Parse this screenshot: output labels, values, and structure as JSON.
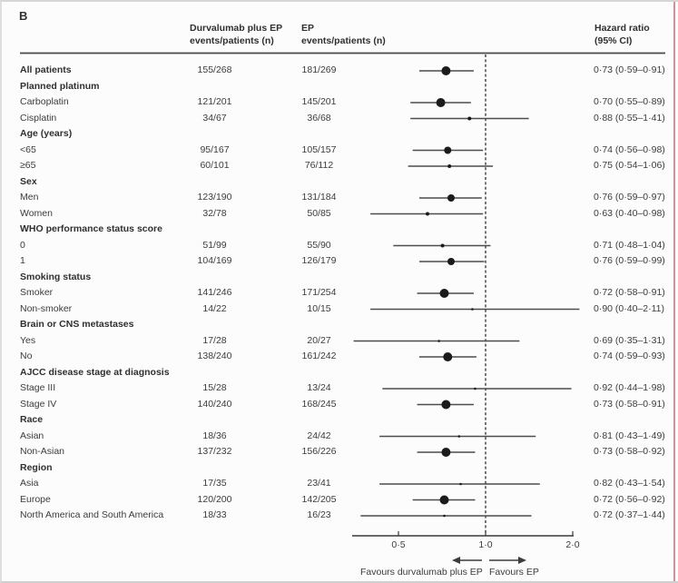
{
  "panel_label": "B",
  "header": {
    "treatment_col_line1": "Durvalumab plus EP",
    "treatment_col_line2": "events/patients (n)",
    "control_col_line1": "EP",
    "control_col_line2": "events/patients (n)",
    "hr_col_line1": "Hazard ratio",
    "hr_col_line2": "(95% CI)"
  },
  "footer": {
    "favours_left": "Favours durvalumab plus EP",
    "favours_right": "Favours EP"
  },
  "chart_data": {
    "type": "forest",
    "x_scale": "log2",
    "x_ticks": [
      0.5,
      1.0,
      2.0
    ],
    "x_tick_labels": [
      "0·5",
      "1·0",
      "2·0"
    ],
    "reference_line": 1.0,
    "colors": {
      "text": "#3c3c3c",
      "rule": "#4a4a4a",
      "marker": "#1b1b1b",
      "ci_line": "#4d4d4d"
    },
    "rows": [
      {
        "label": "All patients",
        "bold": true,
        "group": false,
        "treatment": "155/268",
        "control": "181/269",
        "hr": 0.73,
        "lo": 0.59,
        "hi": 0.91,
        "hr_text": "0·73 (0·59–0·91)"
      },
      {
        "label": "Planned platinum",
        "bold": true,
        "group": true
      },
      {
        "label": "Carboplatin",
        "bold": false,
        "group": false,
        "treatment": "121/201",
        "control": "145/201",
        "hr": 0.7,
        "lo": 0.55,
        "hi": 0.89,
        "hr_text": "0·70 (0·55–0·89)"
      },
      {
        "label": "Cisplatin",
        "bold": false,
        "group": false,
        "treatment": "34/67",
        "control": "36/68",
        "hr": 0.88,
        "lo": 0.55,
        "hi": 1.41,
        "hr_text": "0·88 (0·55–1·41)"
      },
      {
        "label": "Age (years)",
        "bold": true,
        "group": true
      },
      {
        "label": "<65",
        "bold": false,
        "group": false,
        "treatment": "95/167",
        "control": "105/157",
        "hr": 0.74,
        "lo": 0.56,
        "hi": 0.98,
        "hr_text": "0·74 (0·56–0·98)"
      },
      {
        "label": "≥65",
        "bold": false,
        "group": false,
        "treatment": "60/101",
        "control": "76/112",
        "hr": 0.75,
        "lo": 0.54,
        "hi": 1.06,
        "hr_text": "0·75 (0·54–1·06)"
      },
      {
        "label": "Sex",
        "bold": true,
        "group": true
      },
      {
        "label": "Men",
        "bold": false,
        "group": false,
        "treatment": "123/190",
        "control": "131/184",
        "hr": 0.76,
        "lo": 0.59,
        "hi": 0.97,
        "hr_text": "0·76 (0·59–0·97)"
      },
      {
        "label": "Women",
        "bold": false,
        "group": false,
        "treatment": "32/78",
        "control": "50/85",
        "hr": 0.63,
        "lo": 0.4,
        "hi": 0.98,
        "hr_text": "0·63 (0·40–0·98)"
      },
      {
        "label": "WHO performance status score",
        "bold": true,
        "group": true
      },
      {
        "label": "0",
        "bold": false,
        "group": false,
        "treatment": "51/99",
        "control": "55/90",
        "hr": 0.71,
        "lo": 0.48,
        "hi": 1.04,
        "hr_text": "0·71 (0·48–1·04)"
      },
      {
        "label": "1",
        "bold": false,
        "group": false,
        "treatment": "104/169",
        "control": "126/179",
        "hr": 0.76,
        "lo": 0.59,
        "hi": 0.99,
        "hr_text": "0·76 (0·59–0·99)"
      },
      {
        "label": "Smoking status",
        "bold": true,
        "group": true
      },
      {
        "label": "Smoker",
        "bold": false,
        "group": false,
        "treatment": "141/246",
        "control": "171/254",
        "hr": 0.72,
        "lo": 0.58,
        "hi": 0.91,
        "hr_text": "0·72 (0·58–0·91)"
      },
      {
        "label": "Non-smoker",
        "bold": false,
        "group": false,
        "treatment": "14/22",
        "control": "10/15",
        "hr": 0.9,
        "lo": 0.4,
        "hi": 2.11,
        "hr_text": "0·90 (0·40–2·11)"
      },
      {
        "label": "Brain or CNS metastases",
        "bold": true,
        "group": true
      },
      {
        "label": "Yes",
        "bold": false,
        "group": false,
        "treatment": "17/28",
        "control": "20/27",
        "hr": 0.69,
        "lo": 0.35,
        "hi": 1.31,
        "hr_text": "0·69 (0·35–1·31)"
      },
      {
        "label": "No",
        "bold": false,
        "group": false,
        "treatment": "138/240",
        "control": "161/242",
        "hr": 0.74,
        "lo": 0.59,
        "hi": 0.93,
        "hr_text": "0·74 (0·59–0·93)"
      },
      {
        "label": "AJCC disease stage at diagnosis",
        "bold": true,
        "group": true
      },
      {
        "label": "Stage III",
        "bold": false,
        "group": false,
        "treatment": "15/28",
        "control": "13/24",
        "hr": 0.92,
        "lo": 0.44,
        "hi": 1.98,
        "hr_text": "0·92 (0·44–1·98)"
      },
      {
        "label": "Stage IV",
        "bold": false,
        "group": false,
        "treatment": "140/240",
        "control": "168/245",
        "hr": 0.73,
        "lo": 0.58,
        "hi": 0.91,
        "hr_text": "0·73 (0·58–0·91)"
      },
      {
        "label": "Race",
        "bold": true,
        "group": true
      },
      {
        "label": "Asian",
        "bold": false,
        "group": false,
        "treatment": "18/36",
        "control": "24/42",
        "hr": 0.81,
        "lo": 0.43,
        "hi": 1.49,
        "hr_text": "0·81 (0·43–1·49)"
      },
      {
        "label": "Non-Asian",
        "bold": false,
        "group": false,
        "treatment": "137/232",
        "control": "156/226",
        "hr": 0.73,
        "lo": 0.58,
        "hi": 0.92,
        "hr_text": "0·73 (0·58–0·92)"
      },
      {
        "label": "Region",
        "bold": true,
        "group": true
      },
      {
        "label": "Asia",
        "bold": false,
        "group": false,
        "treatment": "17/35",
        "control": "23/41",
        "hr": 0.82,
        "lo": 0.43,
        "hi": 1.54,
        "hr_text": "0·82 (0·43–1·54)"
      },
      {
        "label": "Europe",
        "bold": false,
        "group": false,
        "treatment": "120/200",
        "control": "142/205",
        "hr": 0.72,
        "lo": 0.56,
        "hi": 0.92,
        "hr_text": "0·72 (0·56–0·92)"
      },
      {
        "label": "North America and South America",
        "bold": false,
        "group": false,
        "treatment": "18/33",
        "control": "16/23",
        "hr": 0.72,
        "lo": 0.37,
        "hi": 1.44,
        "hr_text": "0·72 (0·37–1·44)"
      }
    ]
  }
}
